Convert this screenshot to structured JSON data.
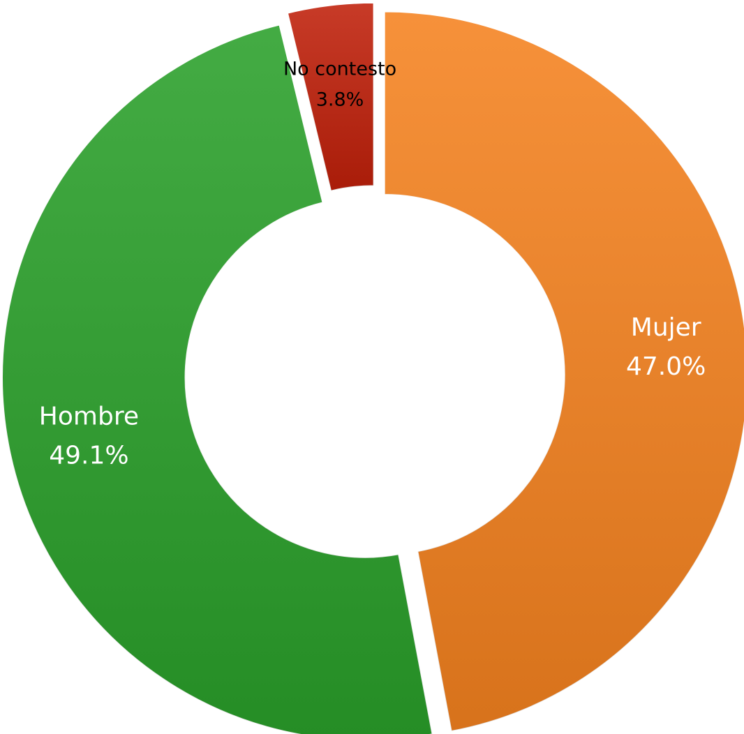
{
  "chart_data": {
    "type": "donut",
    "categories": [
      "Mujer",
      "Hombre",
      "No contesto"
    ],
    "values": [
      47.0,
      49.1,
      3.8
    ],
    "value_labels": [
      "47.0%",
      "49.1%",
      "3.8%"
    ],
    "colors": [
      "#f5821f",
      "#2aa02a",
      "#c0200a"
    ],
    "label_colors": [
      "#ffffff",
      "#ffffff",
      "#000000"
    ]
  }
}
